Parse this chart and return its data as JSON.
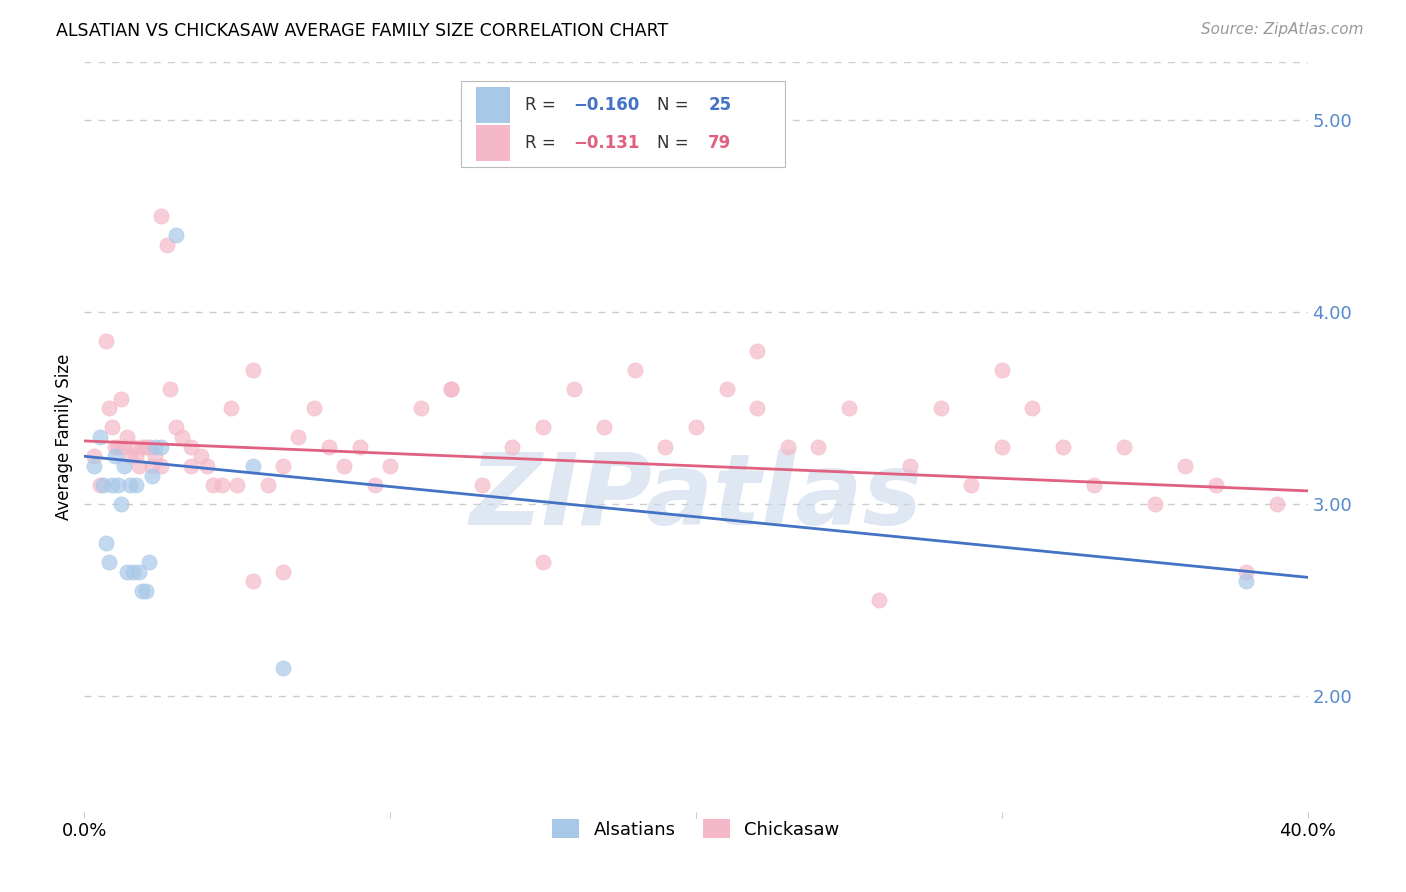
{
  "title": "ALSATIAN VS CHICKASAW AVERAGE FAMILY SIZE CORRELATION CHART",
  "source": "Source: ZipAtlas.com",
  "ylabel": "Average Family Size",
  "xmin": 0.0,
  "xmax": 0.4,
  "ymin": 1.4,
  "ymax": 5.3,
  "yticks_right": [
    2.0,
    3.0,
    4.0,
    5.0
  ],
  "legend_labels": [
    "Alsatians",
    "Chickasaw"
  ],
  "blue_color": "#a8c8e8",
  "pink_color": "#f4b8c8",
  "blue_line_color": "#4472c4",
  "pink_line_color": "#e06080",
  "watermark": "ZIPatlas",
  "watermark_color": "#c8d8ea",
  "alsatian_x": [
    0.003,
    0.005,
    0.006,
    0.007,
    0.008,
    0.009,
    0.01,
    0.011,
    0.012,
    0.013,
    0.014,
    0.015,
    0.016,
    0.017,
    0.018,
    0.019,
    0.02,
    0.021,
    0.022,
    0.023,
    0.025,
    0.03,
    0.055,
    0.065,
    0.38
  ],
  "alsatian_y": [
    3.2,
    3.35,
    3.1,
    2.8,
    2.7,
    3.1,
    3.25,
    3.1,
    3.0,
    3.2,
    2.65,
    3.1,
    2.65,
    3.1,
    2.65,
    2.55,
    2.55,
    2.7,
    3.15,
    3.3,
    3.3,
    4.4,
    3.2,
    2.15,
    2.6
  ],
  "chickasaw_x": [
    0.003,
    0.005,
    0.007,
    0.008,
    0.009,
    0.01,
    0.011,
    0.012,
    0.013,
    0.014,
    0.015,
    0.016,
    0.017,
    0.018,
    0.019,
    0.02,
    0.021,
    0.022,
    0.023,
    0.025,
    0.027,
    0.028,
    0.03,
    0.032,
    0.035,
    0.038,
    0.04,
    0.042,
    0.048,
    0.05,
    0.055,
    0.06,
    0.065,
    0.07,
    0.075,
    0.08,
    0.085,
    0.09,
    0.095,
    0.1,
    0.11,
    0.12,
    0.13,
    0.14,
    0.15,
    0.16,
    0.17,
    0.18,
    0.19,
    0.2,
    0.21,
    0.22,
    0.23,
    0.24,
    0.25,
    0.26,
    0.27,
    0.28,
    0.29,
    0.3,
    0.31,
    0.32,
    0.33,
    0.34,
    0.35,
    0.36,
    0.37,
    0.38,
    0.39,
    0.025,
    0.035,
    0.045,
    0.055,
    0.065,
    0.12,
    0.15,
    0.22,
    0.3
  ],
  "chickasaw_y": [
    3.25,
    3.1,
    3.85,
    3.5,
    3.4,
    3.3,
    3.3,
    3.55,
    3.3,
    3.35,
    3.25,
    3.3,
    3.25,
    3.2,
    3.3,
    3.3,
    3.3,
    3.2,
    3.25,
    4.5,
    4.35,
    3.6,
    3.4,
    3.35,
    3.3,
    3.25,
    3.2,
    3.1,
    3.5,
    3.1,
    3.7,
    3.1,
    3.2,
    3.35,
    3.5,
    3.3,
    3.2,
    3.3,
    3.1,
    3.2,
    3.5,
    3.6,
    3.1,
    3.3,
    3.4,
    3.6,
    3.4,
    3.7,
    3.3,
    3.4,
    3.6,
    3.8,
    3.3,
    3.3,
    3.5,
    2.5,
    3.2,
    3.5,
    3.1,
    3.3,
    3.5,
    3.3,
    3.1,
    3.3,
    3.0,
    3.2,
    3.1,
    2.65,
    3.0,
    3.2,
    3.2,
    3.1,
    2.6,
    2.65,
    3.6,
    2.7,
    3.5,
    3.7
  ],
  "blue_trend_x": [
    0.0,
    0.4
  ],
  "blue_trend_y": [
    3.25,
    2.62
  ],
  "pink_trend_x": [
    0.0,
    0.4
  ],
  "pink_trend_y": [
    3.33,
    3.07
  ]
}
